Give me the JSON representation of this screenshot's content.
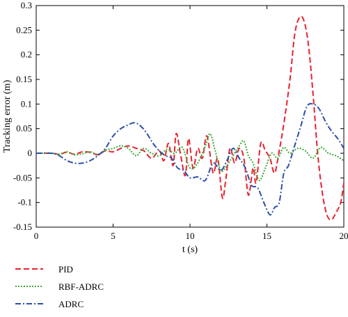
{
  "chart_data": {
    "type": "line",
    "xlabel": "t (s)",
    "ylabel": "Tracking error (m)",
    "xlim": [
      0,
      20
    ],
    "ylim": [
      -0.15,
      0.3
    ],
    "xticks": [
      0,
      5,
      10,
      15,
      20
    ],
    "yticks": [
      -0.15,
      -0.1,
      -0.05,
      0,
      0.05,
      0.1,
      0.15,
      0.2,
      0.25,
      0.3
    ],
    "ytick_labels": [
      "-0.15",
      "-0.1",
      "-0.05",
      "0",
      "0.05",
      "0.1",
      "0.15",
      "0.2",
      "0.25",
      "0.3"
    ],
    "xtick_labels": [
      "0",
      "5",
      "10",
      "15",
      "20"
    ],
    "grid": false,
    "legend_position": "below plot, left",
    "series": [
      {
        "name": "PID",
        "color": "#e8212b",
        "dash": "dashed",
        "x": [
          0,
          1,
          1.5,
          2,
          2.5,
          3,
          3.5,
          4,
          4.5,
          5,
          5.5,
          6,
          6.5,
          7,
          7.5,
          8,
          8.3,
          8.6,
          8.9,
          9.1,
          9.4,
          9.7,
          9.9,
          10.2,
          10.5,
          10.8,
          11.1,
          11.5,
          11.8,
          12.1,
          12.3,
          12.6,
          12.9,
          13.2,
          13.5,
          13.8,
          14.1,
          14.3,
          14.6,
          14.9,
          15.2,
          15.5,
          15.8,
          16.1,
          16.5,
          16.8,
          17.1,
          17.4,
          17.7,
          18.0,
          18.3,
          18.6,
          18.9,
          19.2,
          19.5,
          19.8,
          20.0
        ],
        "y": [
          0,
          0,
          -0.002,
          0.002,
          -0.002,
          0.003,
          0.002,
          -0.003,
          0.005,
          0.003,
          0.01,
          0.015,
          0.01,
          0.005,
          -0.01,
          0.005,
          -0.015,
          0.02,
          -0.025,
          0.04,
          -0.005,
          -0.045,
          0.03,
          -0.03,
          0.01,
          -0.01,
          0.035,
          -0.04,
          -0.01,
          -0.09,
          -0.06,
          0.01,
          -0.02,
          0.01,
          -0.01,
          -0.085,
          -0.03,
          -0.06,
          0.02,
          0.005,
          -0.01,
          -0.04,
          0.005,
          0.06,
          0.15,
          0.24,
          0.275,
          0.27,
          0.22,
          0.12,
          0.0,
          -0.08,
          -0.125,
          -0.135,
          -0.12,
          -0.1,
          -0.06
        ]
      },
      {
        "name": "RBF-ADRC",
        "color": "#3aa935",
        "dash": "dotted",
        "x": [
          0,
          1,
          1.5,
          2,
          2.5,
          3,
          3.5,
          4,
          4.5,
          5,
          5.5,
          6,
          6.5,
          7,
          7.5,
          8,
          8.5,
          9,
          9.5,
          10,
          10.5,
          11,
          11.3,
          11.6,
          12,
          12.4,
          12.8,
          13.2,
          13.5,
          13.8,
          14.1,
          14.5,
          14.9,
          15.3,
          15.7,
          16.1,
          16.5,
          17,
          17.5,
          18,
          18.5,
          19,
          19.5,
          20
        ],
        "y": [
          0,
          0,
          -0.002,
          0.003,
          -0.003,
          -0.001,
          0.003,
          -0.002,
          0.006,
          0.01,
          0.015,
          0.01,
          -0.005,
          0.01,
          0.0,
          -0.005,
          0.008,
          0.0,
          0.012,
          -0.03,
          -0.02,
          0.015,
          0.04,
          0.01,
          -0.035,
          -0.025,
          -0.005,
          0.015,
          0.025,
          -0.005,
          -0.02,
          -0.055,
          -0.03,
          0.0,
          -0.01,
          0.012,
          0.0,
          0.01,
          0.005,
          -0.01,
          0.012,
          0.0,
          -0.005,
          -0.015
        ]
      },
      {
        "name": "ADRC",
        "color": "#2a4fa8",
        "dash": "dashdot",
        "x": [
          0,
          1,
          1.5,
          2,
          2.5,
          3,
          3.5,
          4,
          4.5,
          5,
          5.5,
          6,
          6.4,
          6.8,
          7.2,
          7.6,
          8,
          8.4,
          8.8,
          9.2,
          9.6,
          10,
          10.5,
          11,
          11.5,
          12,
          12.4,
          12.8,
          13.2,
          13.6,
          14,
          14.4,
          14.8,
          15.2,
          15.5,
          15.8,
          16.1,
          16.4,
          16.8,
          17.2,
          17.6,
          18.0,
          18.4,
          18.8,
          19.2,
          19.6,
          20.0
        ],
        "y": [
          0,
          0,
          -0.005,
          -0.015,
          -0.02,
          -0.02,
          -0.015,
          -0.005,
          0.01,
          0.035,
          0.05,
          0.058,
          0.062,
          0.055,
          0.04,
          0.02,
          0.005,
          -0.005,
          -0.01,
          -0.03,
          -0.035,
          -0.05,
          -0.048,
          -0.055,
          -0.02,
          -0.035,
          -0.015,
          0.01,
          -0.01,
          -0.03,
          -0.065,
          -0.07,
          -0.1,
          -0.125,
          -0.11,
          -0.1,
          -0.04,
          -0.025,
          0.015,
          0.055,
          0.095,
          0.1,
          0.09,
          0.065,
          0.045,
          0.03,
          0.01
        ]
      }
    ]
  }
}
